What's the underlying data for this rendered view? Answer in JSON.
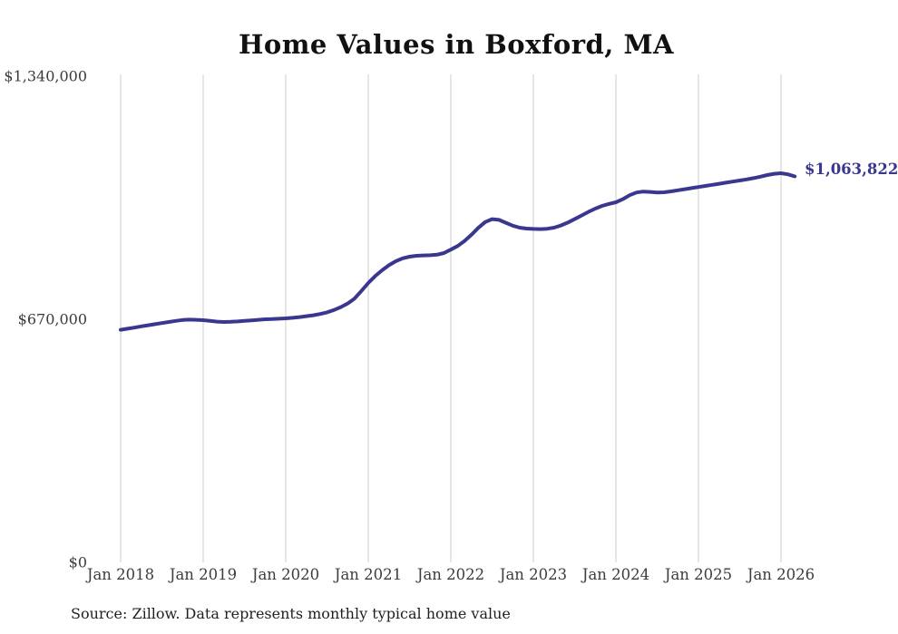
{
  "title": "Home Values in Boxford, MA",
  "source_note": "Source: Zillow. Data represents monthly typical home value",
  "colors": {
    "line": "#3a378f",
    "grid": "#cccccc",
    "title_text": "#111111",
    "axis_text": "#3d3d3d",
    "end_label_text": "#3a378f",
    "background": "#ffffff"
  },
  "chart_data": {
    "type": "line",
    "title": "Home Values in Boxford, MA",
    "x_tick_labels": [
      "Jan 2018",
      "Jan 2019",
      "Jan 2020",
      "Jan 2021",
      "Jan 2022",
      "Jan 2023",
      "Jan 2024",
      "Jan 2025",
      "Jan 2026"
    ],
    "y_tick_labels": [
      "$1,340,000",
      "$670,000",
      "$0"
    ],
    "ylim": [
      0,
      1340000
    ],
    "grid": "vertical-only",
    "legend": "none",
    "end_value_label": "$1,063,822",
    "final_value": 1063822,
    "series": [
      {
        "name": "Typical home value",
        "frequency": "monthly",
        "start_month": "2018-01",
        "end_month": "2026-03",
        "values": [
          641000,
          644000,
          647000,
          650500,
          653500,
          656500,
          659500,
          662500,
          665500,
          668000,
          669000,
          668500,
          667500,
          665500,
          663500,
          662500,
          663000,
          664000,
          665500,
          667000,
          668500,
          670000,
          670500,
          671500,
          672500,
          674000,
          676000,
          678500,
          681000,
          684500,
          689000,
          695500,
          703500,
          713500,
          727000,
          748000,
          770000,
          789000,
          805000,
          819000,
          830000,
          838000,
          842500,
          845000,
          846000,
          846500,
          848000,
          852500,
          862000,
          872000,
          886000,
          903000,
          922000,
          938000,
          946000,
          944000,
          936000,
          928000,
          922500,
          920000,
          919000,
          918500,
          919500,
          922500,
          928500,
          936500,
          946000,
          956000,
          966000,
          975000,
          982500,
          988000,
          992500,
          1001000,
          1012000,
          1019500,
          1022000,
          1021000,
          1019500,
          1020000,
          1022500,
          1025500,
          1028500,
          1031500,
          1034500,
          1037500,
          1040500,
          1043500,
          1046500,
          1049500,
          1052500,
          1055500,
          1059000,
          1063000,
          1067500,
          1071000,
          1072500,
          1069500,
          1063822
        ]
      }
    ]
  }
}
